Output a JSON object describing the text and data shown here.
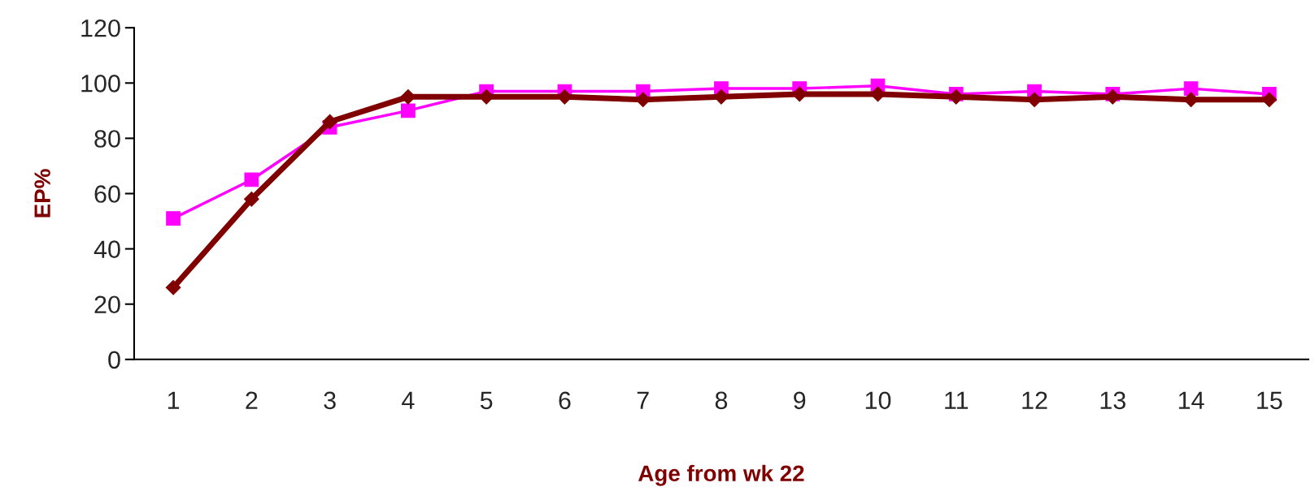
{
  "chart_data": {
    "type": "line",
    "xlabel": "Age from wk 22",
    "ylabel": "EP%",
    "categories": [
      "1",
      "2",
      "3",
      "4",
      "5",
      "6",
      "7",
      "8",
      "9",
      "10",
      "11",
      "12",
      "13",
      "14",
      "15"
    ],
    "series": [
      {
        "color": "#800000",
        "marker": "diamond",
        "values": [
          26,
          58,
          86,
          95,
          95,
          95,
          94,
          95,
          96,
          96,
          95,
          94,
          95,
          94,
          94
        ]
      },
      {
        "color": "#ff00ff",
        "marker": "square",
        "values": [
          51,
          65,
          84,
          90,
          97,
          97,
          97,
          98,
          98,
          99,
          96,
          97,
          96,
          98,
          96
        ]
      }
    ],
    "ylim": [
      0,
      120
    ],
    "yticks": [
      0,
      20,
      40,
      60,
      80,
      100,
      120
    ],
    "grid": false,
    "legend": false
  }
}
